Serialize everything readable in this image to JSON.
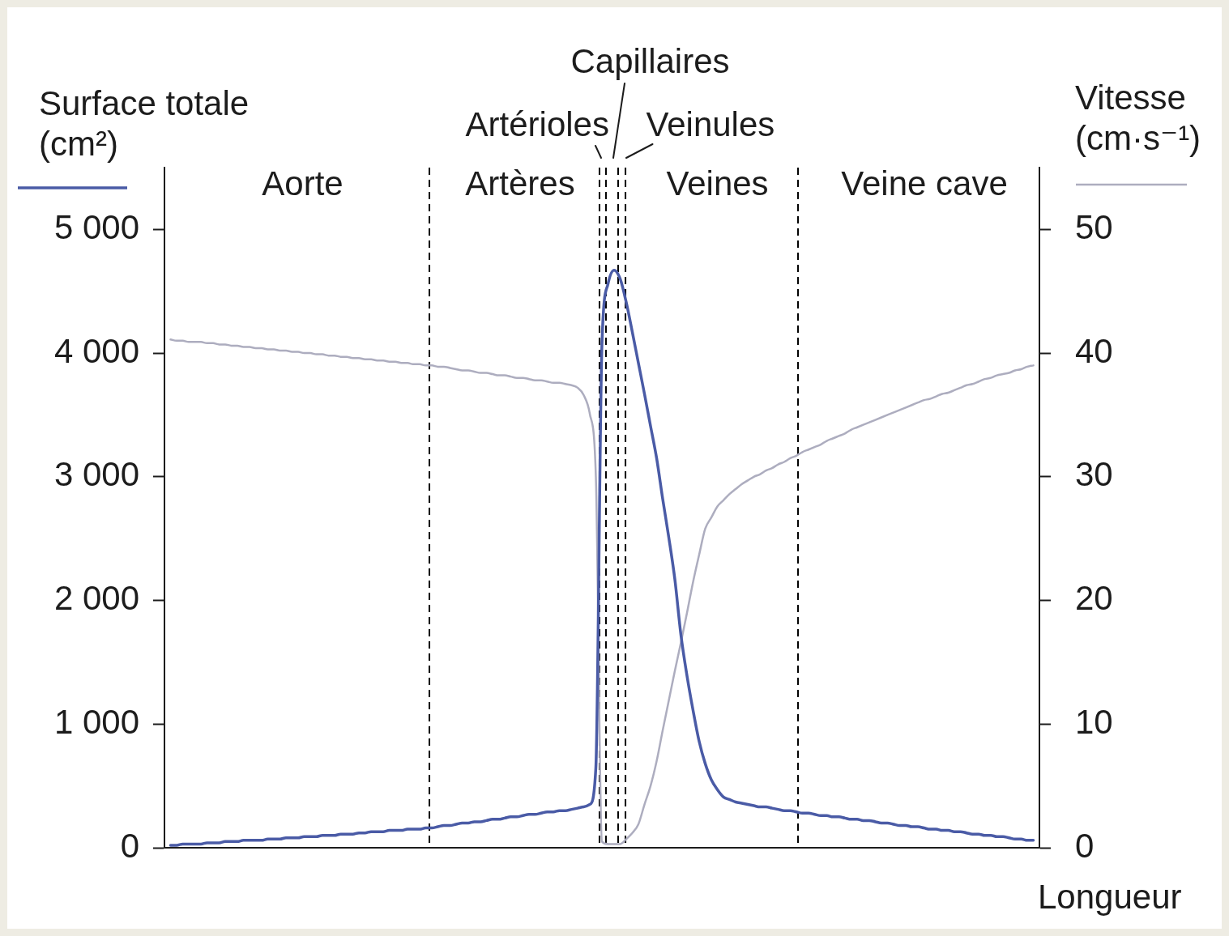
{
  "chart_data": {
    "type": "line",
    "xlabel": "Longueur",
    "ylabel": "Surface totale (cm²)",
    "y2label": "Vitesse (cm·s⁻¹)",
    "categories": [
      null,
      null,
      null,
      null,
      null,
      null,
      null,
      null,
      null,
      null,
      null,
      null,
      null,
      null,
      null,
      null,
      null,
      null,
      null,
      null,
      null,
      null,
      null,
      null,
      null,
      null,
      null,
      null,
      null,
      null,
      null,
      null,
      null,
      null,
      null,
      null,
      null,
      null,
      null,
      null,
      null,
      null,
      null,
      null,
      null,
      null,
      null,
      null,
      null,
      null,
      null,
      null,
      null,
      null,
      null,
      null,
      null,
      null,
      null,
      null,
      null,
      null,
      null,
      null,
      null,
      null,
      null,
      null,
      null,
      null,
      null,
      null,
      null,
      null,
      null,
      null,
      null,
      null,
      null,
      null,
      null,
      null,
      null,
      null,
      null,
      null,
      null,
      null,
      null,
      null,
      null,
      null,
      null,
      null,
      null,
      null,
      null,
      null,
      null,
      null,
      null,
      null,
      null,
      null,
      null,
      null,
      null,
      null,
      null,
      null,
      null,
      null,
      null,
      null,
      null,
      null,
      null,
      null,
      null,
      null,
      null,
      null,
      null,
      null,
      null,
      null,
      null,
      null,
      null,
      null,
      null,
      null,
      null,
      null,
      null,
      null,
      null,
      null,
      null,
      null,
      null,
      null,
      null,
      null,
      null
    ],
    "ylim": [
      0,
      5500
    ],
    "yticks": [
      0,
      {
        "value": 1000,
        "label": "1 000"
      },
      {
        "value": 2000,
        "label": "2 000"
      },
      {
        "value": 3000,
        "label": "3 000"
      },
      {
        "value": 4000,
        "label": "4 000"
      },
      {
        "value": 5000,
        "label": "5 000"
      }
    ],
    "y2lim": [
      0,
      55
    ],
    "y2ticks": [
      0,
      10,
      20,
      30,
      40,
      50
    ],
    "series": [
      {
        "color": "#4a5ba6",
        "values": [
          null,
          20,
          20,
          30,
          30,
          30,
          30,
          40,
          40,
          40,
          50,
          50,
          50,
          60,
          60,
          60,
          60,
          70,
          70,
          70,
          80,
          80,
          80,
          90,
          90,
          90,
          100,
          100,
          100,
          110,
          110,
          110,
          120,
          120,
          130,
          130,
          130,
          140,
          140,
          140,
          150,
          150,
          150,
          160,
          160,
          170,
          180,
          180,
          190,
          200,
          200,
          210,
          210,
          220,
          230,
          230,
          240,
          250,
          250,
          260,
          270,
          270,
          280,
          290,
          290,
          300,
          300,
          310,
          320,
          330,
          350,
          650,
          4070,
          4560,
          4670,
          4600,
          4410,
          4170,
          3920,
          3670,
          3410,
          3150,
          2820,
          2510,
          2170,
          1720,
          1390,
          1110,
          860,
          680,
          550,
          470,
          410,
          390,
          370,
          360,
          350,
          340,
          330,
          330,
          320,
          310,
          300,
          300,
          290,
          280,
          280,
          270,
          260,
          260,
          250,
          250,
          240,
          230,
          230,
          220,
          220,
          210,
          200,
          200,
          190,
          180,
          180,
          170,
          170,
          160,
          150,
          150,
          140,
          140,
          130,
          130,
          120,
          110,
          110,
          100,
          100,
          90,
          90,
          80,
          70,
          70,
          60,
          60,
          null
        ]
      },
      {
        "color": "#adadbf",
        "axis": "y2",
        "values": [
          null,
          41.1,
          41.0,
          41.0,
          40.9,
          40.9,
          40.9,
          40.8,
          40.8,
          40.7,
          40.7,
          40.6,
          40.6,
          40.5,
          40.5,
          40.4,
          40.4,
          40.3,
          40.3,
          40.2,
          40.2,
          40.1,
          40.1,
          40.0,
          40.0,
          39.9,
          39.9,
          39.8,
          39.8,
          39.7,
          39.7,
          39.6,
          39.6,
          39.5,
          39.5,
          39.4,
          39.4,
          39.3,
          39.3,
          39.2,
          39.2,
          39.1,
          39.1,
          39.0,
          39.0,
          38.9,
          38.9,
          38.8,
          38.7,
          38.6,
          38.6,
          38.5,
          38.4,
          38.4,
          38.3,
          38.2,
          38.2,
          38.1,
          38.0,
          38.0,
          37.9,
          37.8,
          37.8,
          37.7,
          37.6,
          37.6,
          37.5,
          37.4,
          37.2,
          36.6,
          35.1,
          30.0,
          0.5,
          0.3,
          0.3,
          0.3,
          0.7,
          1.2,
          1.9,
          3.5,
          5.0,
          7.0,
          9.5,
          11.9,
          14.3,
          16.6,
          19.0,
          21.5,
          23.7,
          25.8,
          26.7,
          27.6,
          28.1,
          28.6,
          29.0,
          29.4,
          29.7,
          30.0,
          30.2,
          30.5,
          30.7,
          31.0,
          31.2,
          31.5,
          31.7,
          32.0,
          32.2,
          32.4,
          32.6,
          32.9,
          33.1,
          33.3,
          33.5,
          33.8,
          34.0,
          34.2,
          34.4,
          34.6,
          34.8,
          35.0,
          35.2,
          35.4,
          35.6,
          35.8,
          36.0,
          36.2,
          36.3,
          36.5,
          36.7,
          36.8,
          37.0,
          37.2,
          37.4,
          37.5,
          37.7,
          37.9,
          38.0,
          38.2,
          38.3,
          38.4,
          38.6,
          38.7,
          38.9,
          39.0,
          null
        ]
      }
    ],
    "annotations": [
      "Aorte",
      "Artères",
      "Artérioles",
      "Capillaires",
      "Veinules",
      "Veines",
      "Veine cave"
    ]
  }
}
